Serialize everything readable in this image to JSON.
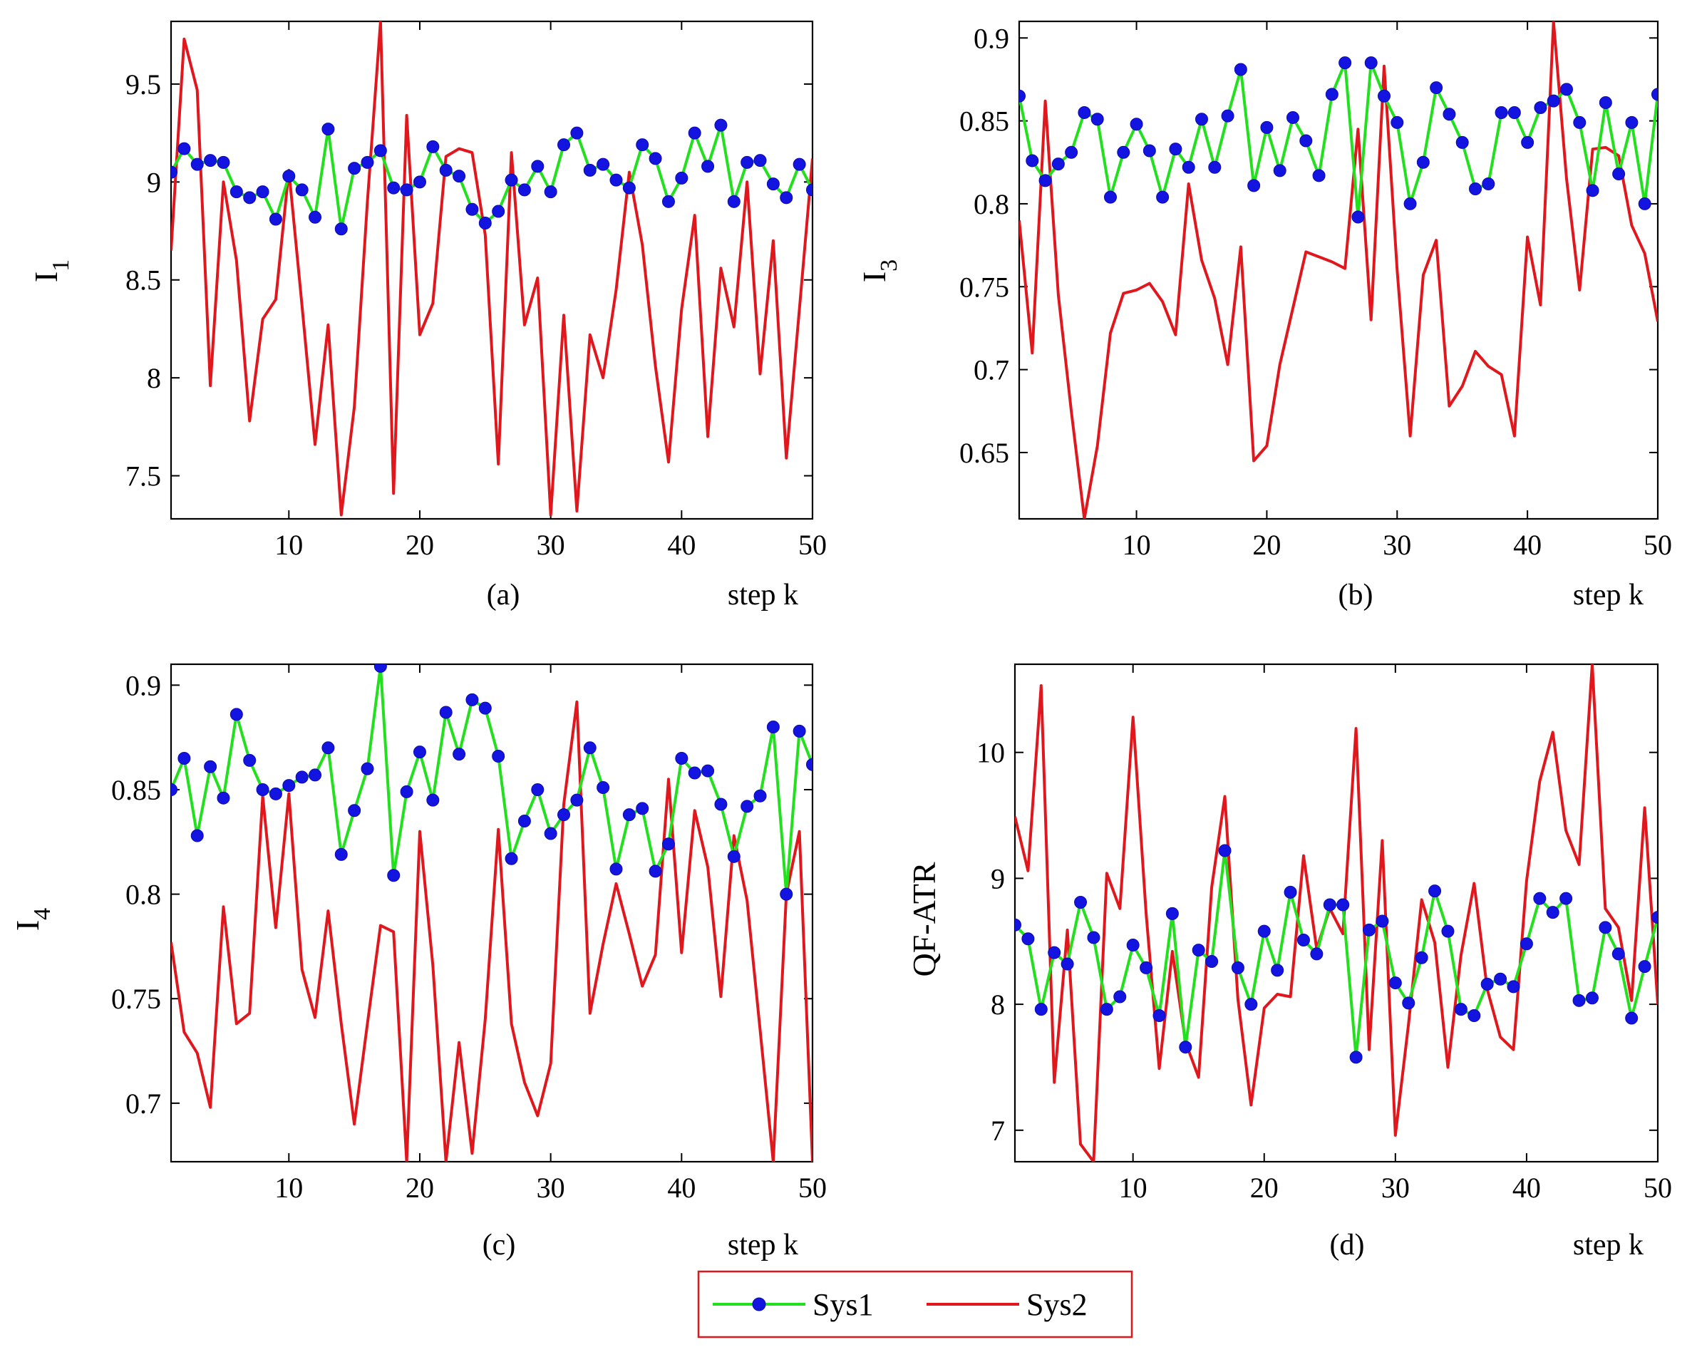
{
  "chart_data": [
    {
      "type": "line",
      "panel_label": "(a)",
      "xlabel": "step k",
      "ylabel": "I",
      "ylabel_sub": "1",
      "xlim": [
        1,
        50
      ],
      "ylim": [
        7.28,
        9.82
      ],
      "xticks": [
        10,
        20,
        30,
        40,
        50
      ],
      "yticks": [
        7.5,
        8,
        8.5,
        9,
        9.5
      ],
      "ytick_labels": [
        "7.5",
        "8",
        "8.5",
        "9",
        "9.5"
      ],
      "series": [
        {
          "name": "Sys1",
          "values": [
            9.05,
            9.17,
            9.09,
            9.11,
            9.1,
            8.95,
            8.92,
            8.95,
            8.81,
            9.03,
            8.96,
            8.82,
            9.27,
            8.76,
            9.07,
            9.1,
            9.16,
            8.97,
            8.96,
            9.0,
            9.18,
            9.06,
            9.03,
            8.86,
            8.79,
            8.85,
            9.01,
            8.96,
            9.08,
            8.95,
            9.19,
            9.25,
            9.06,
            9.09,
            9.01,
            8.97,
            9.19,
            9.12,
            8.9,
            9.02,
            9.25,
            9.08,
            9.29,
            8.9,
            9.1,
            9.11,
            8.99,
            8.92,
            9.09,
            8.96
          ]
        },
        {
          "name": "Sys2",
          "values": [
            8.65,
            9.73,
            9.47,
            7.96,
            9.0,
            8.6,
            7.78,
            8.3,
            8.4,
            9.06,
            8.37,
            7.66,
            8.27,
            7.3,
            7.85,
            8.9,
            9.82,
            7.41,
            9.34,
            8.22,
            8.38,
            9.13,
            9.17,
            9.15,
            8.73,
            7.56,
            9.15,
            8.27,
            8.51,
            7.3,
            8.32,
            7.32,
            8.22,
            8.0,
            8.45,
            9.05,
            8.68,
            8.06,
            7.57,
            8.35,
            8.83,
            7.7,
            8.56,
            8.26,
            9.0,
            8.02,
            8.7,
            7.59,
            8.35,
            9.12
          ]
        }
      ]
    },
    {
      "type": "line",
      "panel_label": "(b)",
      "xlabel": "step k",
      "ylabel": "I",
      "ylabel_sub": "3",
      "xlim": [
        1,
        50
      ],
      "ylim": [
        0.61,
        0.91
      ],
      "xticks": [
        10,
        20,
        30,
        40,
        50
      ],
      "yticks": [
        0.65,
        0.7,
        0.75,
        0.8,
        0.85,
        0.9
      ],
      "ytick_labels": [
        "0.65",
        "0.7",
        "0.75",
        "0.8",
        "0.85",
        "0.9"
      ],
      "series": [
        {
          "name": "Sys1",
          "values": [
            0.865,
            0.826,
            0.814,
            0.824,
            0.831,
            0.855,
            0.851,
            0.804,
            0.831,
            0.848,
            0.832,
            0.804,
            0.833,
            0.822,
            0.851,
            0.822,
            0.853,
            0.881,
            0.811,
            0.846,
            0.82,
            0.852,
            0.838,
            0.817,
            0.866,
            0.885,
            0.792,
            0.885,
            0.865,
            0.849,
            0.8,
            0.825,
            0.87,
            0.854,
            0.837,
            0.809,
            0.812,
            0.855,
            0.855,
            0.837,
            0.858,
            0.862,
            0.869,
            0.849,
            0.808,
            0.861,
            0.818,
            0.849,
            0.8,
            0.866
          ]
        },
        {
          "name": "Sys2",
          "values": [
            0.79,
            0.71,
            0.862,
            0.745,
            0.675,
            0.61,
            0.654,
            0.722,
            0.746,
            0.748,
            0.752,
            0.741,
            0.721,
            0.812,
            0.766,
            0.743,
            0.703,
            0.774,
            0.645,
            0.654,
            0.703,
            0.737,
            0.771,
            0.768,
            0.765,
            0.761,
            0.845,
            0.73,
            0.883,
            0.76,
            0.66,
            0.757,
            0.778,
            0.678,
            0.69,
            0.711,
            0.702,
            0.697,
            0.66,
            0.78,
            0.739,
            0.91,
            0.815,
            0.748,
            0.833,
            0.834,
            0.829,
            0.787,
            0.77,
            0.729
          ]
        }
      ]
    },
    {
      "type": "line",
      "panel_label": "(c)",
      "xlabel": "step k",
      "ylabel": "I",
      "ylabel_sub": "4",
      "xlim": [
        1,
        50
      ],
      "ylim": [
        0.672,
        0.91
      ],
      "xticks": [
        10,
        20,
        30,
        40,
        50
      ],
      "yticks": [
        0.7,
        0.75,
        0.8,
        0.85,
        0.9
      ],
      "ytick_labels": [
        "0.7",
        "0.75",
        "0.8",
        "0.85",
        "0.9"
      ],
      "series": [
        {
          "name": "Sys1",
          "values": [
            0.85,
            0.865,
            0.828,
            0.861,
            0.846,
            0.886,
            0.864,
            0.85,
            0.848,
            0.852,
            0.856,
            0.857,
            0.87,
            0.819,
            0.84,
            0.86,
            0.909,
            0.809,
            0.849,
            0.868,
            0.845,
            0.887,
            0.867,
            0.893,
            0.889,
            0.866,
            0.817,
            0.835,
            0.85,
            0.829,
            0.838,
            0.845,
            0.87,
            0.851,
            0.812,
            0.838,
            0.841,
            0.811,
            0.824,
            0.865,
            0.858,
            0.859,
            0.843,
            0.818,
            0.842,
            0.847,
            0.88,
            0.8,
            0.878,
            0.862
          ]
        },
        {
          "name": "Sys2",
          "values": [
            0.777,
            0.734,
            0.724,
            0.698,
            0.794,
            0.738,
            0.743,
            0.847,
            0.784,
            0.848,
            0.764,
            0.741,
            0.792,
            0.738,
            0.69,
            0.738,
            0.785,
            0.782,
            0.672,
            0.83,
            0.766,
            0.672,
            0.729,
            0.676,
            0.74,
            0.831,
            0.738,
            0.71,
            0.694,
            0.719,
            0.843,
            0.892,
            0.743,
            0.776,
            0.805,
            0.781,
            0.756,
            0.771,
            0.855,
            0.772,
            0.84,
            0.813,
            0.751,
            0.828,
            0.797,
            0.735,
            0.672,
            0.8,
            0.83,
            0.672
          ]
        }
      ]
    },
    {
      "type": "line",
      "panel_label": "(d)",
      "xlabel": "step k",
      "ylabel": "QF-ATR",
      "ylabel_sub": "",
      "xlim": [
        1,
        50
      ],
      "ylim": [
        6.75,
        10.7
      ],
      "xticks": [
        10,
        20,
        30,
        40,
        50
      ],
      "yticks": [
        7,
        8,
        9,
        10
      ],
      "ytick_labels": [
        "7",
        "8",
        "9",
        "10"
      ],
      "series": [
        {
          "name": "Sys1",
          "values": [
            8.63,
            8.52,
            7.96,
            8.41,
            8.32,
            8.81,
            8.53,
            7.96,
            8.06,
            8.47,
            8.29,
            7.91,
            8.72,
            7.66,
            8.43,
            8.34,
            9.22,
            8.29,
            8.0,
            8.58,
            8.27,
            8.89,
            8.51,
            8.4,
            8.79,
            8.79,
            7.58,
            8.59,
            8.66,
            8.17,
            8.01,
            8.37,
            8.9,
            8.58,
            7.96,
            7.91,
            8.16,
            8.2,
            8.14,
            8.48,
            8.84,
            8.73,
            8.84,
            8.03,
            8.05,
            8.61,
            8.4,
            7.89,
            8.3,
            8.69
          ]
        },
        {
          "name": "Sys2",
          "values": [
            9.49,
            9.06,
            10.53,
            7.38,
            8.59,
            6.89,
            6.75,
            9.04,
            8.76,
            10.28,
            8.72,
            7.49,
            8.42,
            7.7,
            7.42,
            8.93,
            9.65,
            8.04,
            7.2,
            7.97,
            8.08,
            8.06,
            9.18,
            8.44,
            8.76,
            8.56,
            10.19,
            7.64,
            9.3,
            6.96,
            7.84,
            8.83,
            8.49,
            7.5,
            8.39,
            8.96,
            8.12,
            7.74,
            7.64,
            8.98,
            9.77,
            10.16,
            9.38,
            9.11,
            10.7,
            8.76,
            8.61,
            8.03,
            9.56,
            8.0
          ]
        }
      ]
    }
  ],
  "legend": {
    "entries": [
      {
        "label": "Sys1",
        "color": "#22e01e",
        "marker": "filled-circle",
        "marker_color": "#1414e0"
      },
      {
        "label": "Sys2",
        "color": "#e0181e",
        "marker": "none"
      }
    ],
    "border_color": "#e0181e",
    "placement": "bottom-center"
  },
  "colors": {
    "sys1_line": "#22e01e",
    "sys1_marker": "#1414e0",
    "sys2_line": "#e0181e",
    "axes": "#000000",
    "background": "#ffffff"
  }
}
